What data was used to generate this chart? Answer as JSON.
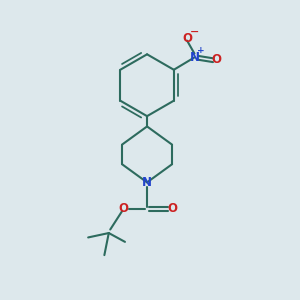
{
  "background_color": "#dde8ec",
  "bond_color": "#2d6b5e",
  "N_color": "#2244cc",
  "O_color": "#cc2222",
  "bond_width": 1.5,
  "figsize": [
    3.0,
    3.0
  ],
  "dpi": 100,
  "xlim": [
    0,
    10
  ],
  "ylim": [
    0,
    10
  ]
}
